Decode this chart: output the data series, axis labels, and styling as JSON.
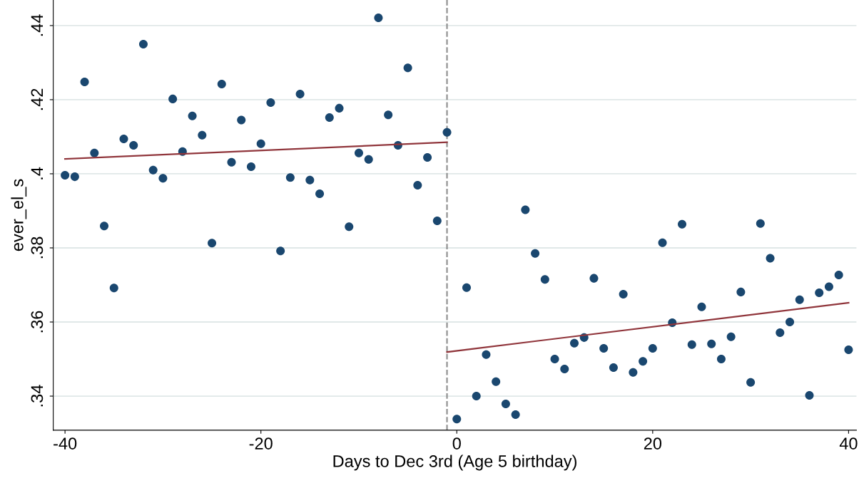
{
  "chart_data": {
    "type": "scatter",
    "xlabel": "Days to Dec 3rd (Age 5 birthday)",
    "ylabel": "ever_el_s",
    "xlim": [
      -41.2,
      40.8
    ],
    "xticks": [
      -40,
      -20,
      0,
      20,
      40
    ],
    "ylim": [
      0.3308,
      0.4469
    ],
    "yticks": [
      {
        "value": 0.34,
        "label": ".34"
      },
      {
        "value": 0.36,
        "label": ".36"
      },
      {
        "value": 0.38,
        "label": ".38"
      },
      {
        "value": 0.4,
        "label": ".4"
      },
      {
        "value": 0.42,
        "label": ".42"
      },
      {
        "value": 0.44,
        "label": ".44"
      }
    ],
    "grid": "y",
    "legend": false,
    "marker": "circle",
    "series": [
      {
        "color": "#1a476f",
        "x": [
          -40,
          -39,
          -38,
          -37,
          -36,
          -35,
          -34,
          -33,
          -32,
          -31,
          -30,
          -29,
          -28,
          -27,
          -26,
          -25,
          -24,
          -23,
          -22,
          -21,
          -20,
          -19,
          -18,
          -17,
          -16,
          -15,
          -14,
          -13,
          -12,
          -11,
          -10,
          -9,
          -8,
          -7,
          -6,
          -5,
          -4,
          -3,
          -2,
          -1
        ],
        "values": [
          0.3996,
          0.3992,
          0.4248,
          0.4056,
          0.3859,
          0.3692,
          0.4094,
          0.4077,
          0.435,
          0.401,
          0.3988,
          0.4202,
          0.406,
          0.4156,
          0.4104,
          0.3813,
          0.4242,
          0.4031,
          0.4145,
          0.4019,
          0.4081,
          0.4192,
          0.3792,
          0.399,
          0.4215,
          0.3983,
          0.3946,
          0.4152,
          0.4177,
          0.3857,
          0.4056,
          0.4039,
          0.4421,
          0.4159,
          0.4077,
          0.4286,
          0.3969,
          0.4044,
          0.3873,
          0.4112
        ]
      },
      {
        "color": "#1a476f",
        "x": [
          0,
          1,
          2,
          3,
          4,
          5,
          6,
          7,
          8,
          9,
          10,
          11,
          12,
          13,
          14,
          15,
          16,
          17,
          18,
          19,
          20,
          21,
          22,
          23,
          24,
          25,
          26,
          27,
          28,
          29,
          30,
          31,
          32,
          33,
          34,
          35,
          36,
          37,
          38,
          39,
          40
        ],
        "values": [
          0.3338,
          0.3693,
          0.34,
          0.3512,
          0.3439,
          0.3379,
          0.335,
          0.3903,
          0.3785,
          0.3715,
          0.35,
          0.3473,
          0.3543,
          0.3558,
          0.3718,
          0.3529,
          0.3477,
          0.3675,
          0.3464,
          0.3494,
          0.3529,
          0.3814,
          0.3598,
          0.3864,
          0.3539,
          0.3641,
          0.3541,
          0.35,
          0.356,
          0.3681,
          0.3437,
          0.3866,
          0.3772,
          0.3571,
          0.36,
          0.366,
          0.3402,
          0.3679,
          0.3695,
          0.3727,
          0.3525
        ]
      },
      {
        "type": "line",
        "color": "#90353b",
        "marker": "none",
        "line_style": "solid",
        "x": [
          -40,
          -1
        ],
        "values": [
          0.404,
          0.4085
        ]
      },
      {
        "type": "line",
        "color": "#90353b",
        "marker": "none",
        "line_style": "solid",
        "x": [
          -1,
          40
        ],
        "values": [
          0.3519,
          0.3652
        ]
      }
    ],
    "ref_lines": [
      {
        "axis": "x",
        "value": -1,
        "label": null,
        "color": "#8c8c8c",
        "line_style": "dashed"
      }
    ]
  }
}
